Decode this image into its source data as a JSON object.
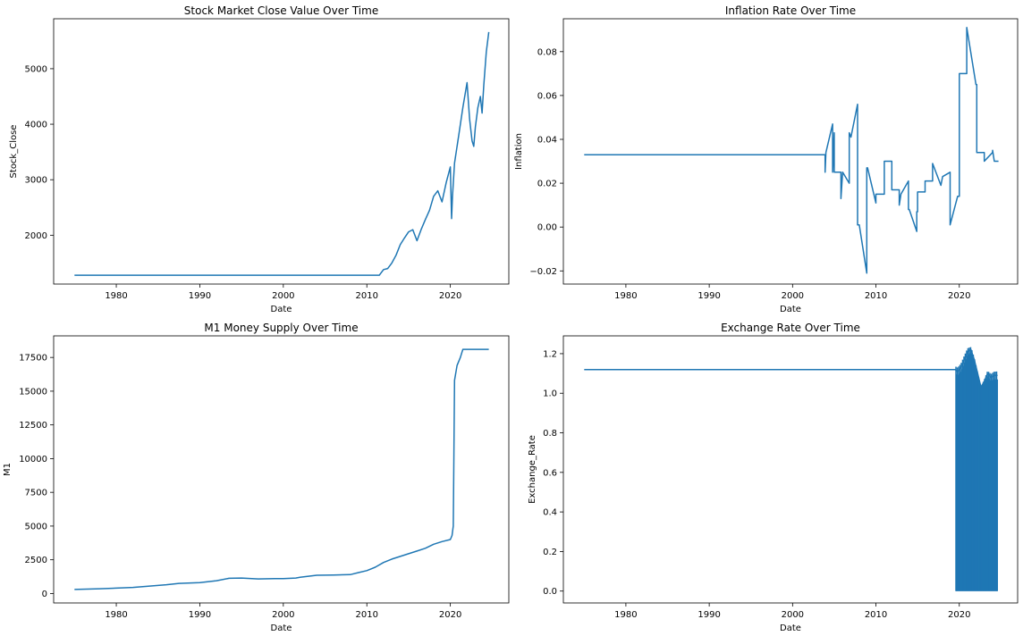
{
  "figure": {
    "line_color": "#1f77b4"
  },
  "chart_data": [
    {
      "type": "line",
      "title": "Stock Market Close Value Over Time",
      "xlabel": "Date",
      "ylabel": "Stock_Close",
      "xlim": [
        1972.5,
        2027.0
      ],
      "ylim": [
        1120,
        5900
      ],
      "xticks": [
        1980,
        1990,
        2000,
        2010,
        2020
      ],
      "yticks": [
        2000,
        3000,
        4000,
        5000
      ],
      "grid": false,
      "series": [
        {
          "x": [
            1975.0,
            2011.5,
            2012.0,
            2012.5,
            2013.0,
            2013.5,
            2014.0,
            2014.5,
            2015.0,
            2015.5,
            2016.0,
            2016.5,
            2017.0,
            2017.5,
            2018.0,
            2018.5,
            2019.0,
            2019.5,
            2020.0,
            2020.15,
            2020.25,
            2020.5,
            2021.0,
            2021.5,
            2022.0,
            2022.3,
            2022.6,
            2022.8,
            2023.0,
            2023.3,
            2023.6,
            2023.8,
            2024.0,
            2024.3,
            2024.6
          ],
          "y": [
            1280,
            1280,
            1380,
            1400,
            1500,
            1640,
            1830,
            1950,
            2060,
            2100,
            1900,
            2100,
            2280,
            2450,
            2700,
            2800,
            2600,
            2950,
            3230,
            2300,
            2700,
            3300,
            3800,
            4300,
            4750,
            4100,
            3700,
            3600,
            3950,
            4300,
            4500,
            4200,
            4700,
            5300,
            5660
          ]
        }
      ]
    },
    {
      "type": "line",
      "title": "Inflation Rate Over Time",
      "xlabel": "Date",
      "ylabel": "Inflation",
      "xlim": [
        1972.5,
        2027.0
      ],
      "ylim": [
        -0.026,
        0.095
      ],
      "xticks": [
        1980,
        1990,
        2000,
        2010,
        2020
      ],
      "yticks": [
        -0.02,
        0.0,
        0.02,
        0.04,
        0.06,
        0.08
      ],
      "ytick_labels": [
        "−0.02",
        "0.00",
        "0.02",
        "0.04",
        "0.06",
        "0.08"
      ],
      "grid": false,
      "series": [
        {
          "x": [
            1975.0,
            2003.9,
            2003.9,
            2004.0,
            2004.0,
            2004.8,
            2004.8,
            2004.9,
            2004.9,
            2005.0,
            2005.0,
            2005.8,
            2005.8,
            2006.0,
            2006.0,
            2006.8,
            2006.8,
            2007.0,
            2007.0,
            2007.8,
            2007.8,
            2008.0,
            2008.0,
            2008.9,
            2008.9,
            2009.0,
            2009.0,
            2010.0,
            2010.0,
            2011.0,
            2011.0,
            2011.9,
            2011.9,
            2012.8,
            2012.8,
            2013.0,
            2013.0,
            2013.9,
            2013.9,
            2014.0,
            2014.0,
            2014.9,
            2014.9,
            2015.0,
            2015.0,
            2015.9,
            2015.9,
            2016.8,
            2016.8,
            2017.8,
            2017.8,
            2018.0,
            2018.0,
            2018.9,
            2018.9,
            2019.8,
            2019.8,
            2020.0,
            2020.0,
            2020.9,
            2020.9,
            2022.0,
            2022.0,
            2022.1,
            2022.1,
            2023.0,
            2023.0,
            2024.0,
            2024.0,
            2024.2,
            2024.2,
            2024.7
          ],
          "y": [
            0.033,
            0.033,
            0.025,
            0.034,
            0.034,
            0.047,
            0.025,
            0.034,
            0.034,
            0.043,
            0.025,
            0.025,
            0.013,
            0.025,
            0.025,
            0.02,
            0.043,
            0.041,
            0.041,
            0.056,
            0.001,
            0.001,
            0.001,
            -0.021,
            0.027,
            0.027,
            0.027,
            0.011,
            0.015,
            0.015,
            0.03,
            0.03,
            0.017,
            0.017,
            0.01,
            0.015,
            0.015,
            0.021,
            0.008,
            0.008,
            0.008,
            -0.002,
            0.007,
            0.007,
            0.016,
            0.016,
            0.021,
            0.021,
            0.029,
            0.019,
            0.019,
            0.023,
            0.023,
            0.025,
            0.001,
            0.014,
            0.014,
            0.014,
            0.07,
            0.07,
            0.091,
            0.065,
            0.065,
            0.065,
            0.034,
            0.034,
            0.03,
            0.034,
            0.035,
            0.03,
            0.03,
            0.03
          ]
        }
      ]
    },
    {
      "type": "line",
      "title": "M1 Money Supply Over Time",
      "xlabel": "Date",
      "ylabel": "M1",
      "xlim": [
        1972.5,
        2027.0
      ],
      "ylim": [
        -700,
        19100
      ],
      "xticks": [
        1980,
        1990,
        2000,
        2010,
        2020
      ],
      "yticks": [
        0,
        2500,
        5000,
        7500,
        10000,
        12500,
        15000,
        17500
      ],
      "grid": false,
      "series": [
        {
          "x": [
            1975.0,
            1978.0,
            1980.0,
            1982.0,
            1984.0,
            1986.0,
            1987.5,
            1990.0,
            1992.0,
            1993.5,
            1995.0,
            1997.0,
            1999.0,
            2000.0,
            2001.5,
            2002.0,
            2004.0,
            2006.0,
            2008.0,
            2009.0,
            2010.0,
            2011.0,
            2012.0,
            2013.0,
            2014.0,
            2015.0,
            2016.0,
            2017.0,
            2018.0,
            2019.0,
            2020.0,
            2020.2,
            2020.35,
            2020.5,
            2020.8,
            2021.2,
            2021.5,
            2022.0,
            2024.6
          ],
          "y": [
            300,
            350,
            400,
            450,
            550,
            650,
            750,
            800,
            950,
            1130,
            1150,
            1080,
            1100,
            1100,
            1150,
            1200,
            1350,
            1370,
            1400,
            1550,
            1700,
            1950,
            2300,
            2550,
            2750,
            2950,
            3150,
            3350,
            3650,
            3850,
            4000,
            4300,
            5000,
            15800,
            16900,
            17500,
            18100,
            18100,
            18100
          ]
        }
      ]
    },
    {
      "type": "line",
      "title": "Exchange Rate Over Time",
      "xlabel": "Date",
      "ylabel": "Exchange_Rate",
      "xlim": [
        1972.5,
        2027.0
      ],
      "ylim": [
        -0.06,
        1.29
      ],
      "xticks": [
        1980,
        1990,
        2000,
        2010,
        2020
      ],
      "yticks": [
        0.0,
        0.2,
        0.4,
        0.6,
        0.8,
        1.0,
        1.2
      ],
      "grid": false,
      "series": [
        {
          "x": [
            1975.0,
            2019.5,
            2019.8,
            2020.2,
            2020.6,
            2021.0,
            2021.4,
            2021.8,
            2022.2,
            2022.6,
            2023.0,
            2023.4,
            2023.8,
            2024.2,
            2024.6
          ],
          "y": [
            1.12,
            1.12,
            1.11,
            1.13,
            1.17,
            1.21,
            1.22,
            1.17,
            1.1,
            1.03,
            1.06,
            1.1,
            1.08,
            1.09,
            1.09
          ]
        }
      ]
    }
  ]
}
